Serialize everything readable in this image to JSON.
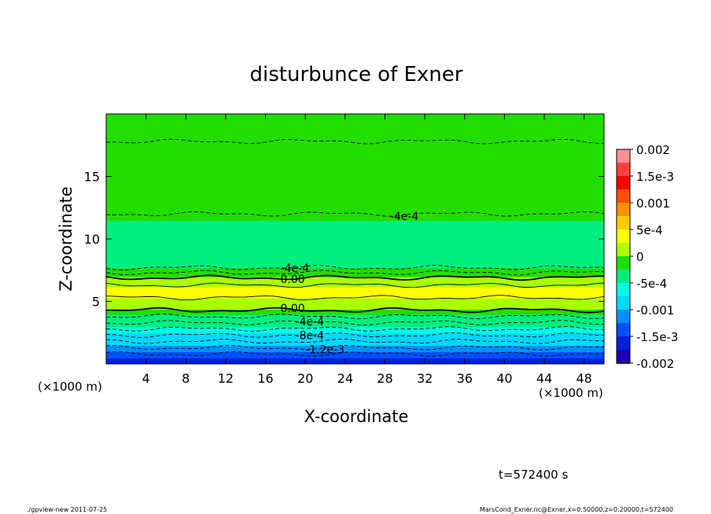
{
  "chart_data": {
    "type": "heatmap",
    "title": "disturbunce of Exner",
    "xlabel": "X-coordinate",
    "ylabel": "Z-coordinate",
    "x_unit_left": "(×1000 m)",
    "x_unit_right": "(×1000 m)",
    "xlim": [
      0,
      50
    ],
    "ylim": [
      0,
      20
    ],
    "x_ticks": [
      4,
      8,
      12,
      16,
      20,
      24,
      28,
      32,
      36,
      40,
      44,
      48
    ],
    "x_tick_labels": [
      "4",
      "8",
      "12",
      "16",
      "20",
      "24",
      "28",
      "32",
      "36",
      "40",
      "44",
      "48"
    ],
    "y_ticks": [
      5,
      10,
      15
    ],
    "y_tick_labels": [
      "5",
      "10",
      "15"
    ],
    "z_bands": [
      {
        "z0": 0.0,
        "z1": 0.5,
        "value": -0.00165
      },
      {
        "z0": 0.5,
        "z1": 1.0,
        "value": -0.0014
      },
      {
        "z0": 1.0,
        "z1": 1.5,
        "value": -0.00115
      },
      {
        "z0": 1.5,
        "z1": 2.0,
        "value": -0.00095
      },
      {
        "z0": 2.0,
        "z1": 2.5,
        "value": -0.0008
      },
      {
        "z0": 2.5,
        "z1": 3.0,
        "value": -0.00065
      },
      {
        "z0": 3.0,
        "z1": 3.5,
        "value": -0.0005
      },
      {
        "z0": 3.5,
        "z1": 4.0,
        "value": -0.0003
      },
      {
        "z0": 4.0,
        "z1": 4.4,
        "value": -0.0001
      },
      {
        "z0": 4.4,
        "z1": 5.3,
        "value": 0.00015
      },
      {
        "z0": 5.3,
        "z1": 6.2,
        "value": 0.0003
      },
      {
        "z0": 6.2,
        "z1": 7.0,
        "value": 0.0001
      },
      {
        "z0": 7.0,
        "z1": 7.7,
        "value": -0.00015
      },
      {
        "z0": 7.7,
        "z1": 9.5,
        "value": -0.00045
      },
      {
        "z0": 9.5,
        "z1": 11.5,
        "value": -0.0004
      },
      {
        "z0": 11.5,
        "z1": 15.0,
        "value": -0.0002
      },
      {
        "z0": 15.0,
        "z1": 18.0,
        "value": -0.0001
      },
      {
        "z0": 18.0,
        "z1": 20.0,
        "value": -0.0002
      }
    ],
    "contours": [
      {
        "z": 0.8,
        "style": "dashed",
        "label": "",
        "label_x": null
      },
      {
        "z": 1.3,
        "style": "dashed",
        "label": "-1.2e-3",
        "label_x": 20
      },
      {
        "z": 1.8,
        "style": "dashed",
        "label": "",
        "label_x": null
      },
      {
        "z": 2.3,
        "style": "dashed",
        "label": "-8e-4",
        "label_x": 19
      },
      {
        "z": 2.8,
        "style": "dashed",
        "label": "",
        "label_x": null
      },
      {
        "z": 3.3,
        "style": "dashed",
        "label": "-4e-4",
        "label_x": 19
      },
      {
        "z": 3.8,
        "style": "dashed",
        "label": "",
        "label_x": null
      },
      {
        "z": 4.3,
        "style": "solid-thick",
        "label": "0.00",
        "label_x": 17.5
      },
      {
        "z": 5.3,
        "style": "solid",
        "label": "",
        "label_x": null
      },
      {
        "z": 6.3,
        "style": "solid",
        "label": "",
        "label_x": null
      },
      {
        "z": 6.9,
        "style": "solid-thick",
        "label": "0.00",
        "label_x": 17.5
      },
      {
        "z": 7.3,
        "style": "dashed",
        "label": "",
        "label_x": null
      },
      {
        "z": 7.7,
        "style": "dashed",
        "label": "-4e-4",
        "label_x": 17.5
      },
      {
        "z": 12.0,
        "style": "dashed",
        "label": "-4e-4",
        "label_x": 28.5
      },
      {
        "z": 17.8,
        "style": "dashed",
        "label": "",
        "label_x": null
      }
    ],
    "colorbar": {
      "levels": [
        0.002,
        0.00175,
        0.0015,
        0.00125,
        0.001,
        0.00075,
        0.0005,
        0.00025,
        0,
        -0.00025,
        -0.0005,
        -0.00075,
        -0.001,
        -0.00125,
        -0.0015,
        -0.00175,
        -0.002
      ],
      "colors": [
        "#ff9090",
        "#ff4040",
        "#ff0000",
        "#ff5000",
        "#ff9000",
        "#ffcc00",
        "#ffff00",
        "#aaff00",
        "#22dd00",
        "#00ee80",
        "#00ffe0",
        "#00d8ff",
        "#0090ff",
        "#0050ff",
        "#0020e0",
        "#2000b0",
        "#8000b0"
      ],
      "tick_values": [
        0.002,
        0.0015,
        0.001,
        0.0005,
        0,
        -0.0005,
        -0.001,
        -0.0015,
        -0.002
      ],
      "tick_labels": [
        "0.002",
        "1.5e-3",
        "0.001",
        "5e-4",
        "0",
        "-5e-4",
        "-0.001",
        "-1.5e-3",
        "-0.002"
      ]
    },
    "time_label": "t=572400 s",
    "footer_left": "./gpview-new  2011-07-25",
    "footer_right": "MarsCond_Exner.nc@Exner,x=0:50000,z=0:20000,t=572400"
  }
}
